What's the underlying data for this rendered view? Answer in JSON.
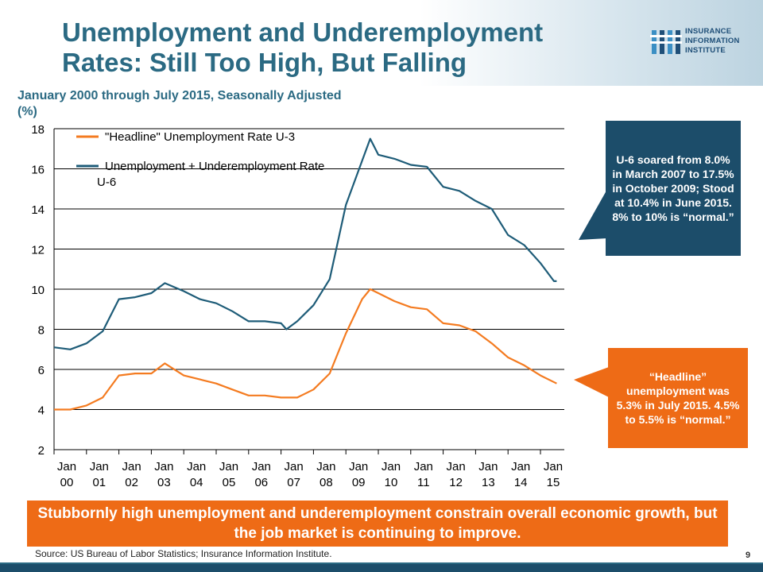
{
  "slide": {
    "title": "Unemployment and Underemployment Rates: Still Too High, But Falling",
    "subtitle": "January 2000 through July 2015, Seasonally Adjusted (%)",
    "logo": {
      "line1": "INSURANCE",
      "line2": "INFORMATION",
      "line3": "INSTITUTE"
    },
    "callout_u6": "U-6 soared from 8.0% in March 2007 to 17.5% in October 2009; Stood at 10.4% in June 2015. 8% to 10% is “normal.”",
    "callout_u3": "“Headline” unemployment was 5.3% in July 2015. 4.5% to 5.5% is “normal.”",
    "banner": "Stubbornly high unemployment and underemployment constrain overall economic growth, but the job market is continuing to improve.",
    "source": "Source: US Bureau of Labor Statistics; Insurance Information Institute.",
    "page_number": "9"
  },
  "colors": {
    "u3": "#f47b20",
    "u6": "#1e5c78",
    "title": "#2b6a83",
    "callout_u6_bg": "#1c4d6a",
    "callout_u3_bg": "#ee6b16"
  },
  "chart_data": {
    "type": "line",
    "title": "",
    "ylabel": "",
    "xlabel": "",
    "ylim": [
      2,
      18
    ],
    "yticks": [
      "2",
      "4",
      "6",
      "8",
      "10",
      "12",
      "14",
      "16",
      "18"
    ],
    "xlim": [
      "2000-01",
      "2015-07"
    ],
    "xtick_labels": [
      [
        "Jan",
        "00"
      ],
      [
        "Jan",
        "01"
      ],
      [
        "Jan",
        "02"
      ],
      [
        "Jan",
        "03"
      ],
      [
        "Jan",
        "04"
      ],
      [
        "Jan",
        "05"
      ],
      [
        "Jan",
        "06"
      ],
      [
        "Jan",
        "07"
      ],
      [
        "Jan",
        "08"
      ],
      [
        "Jan",
        "09"
      ],
      [
        "Jan",
        "10"
      ],
      [
        "Jan",
        "11"
      ],
      [
        "Jan",
        "12"
      ],
      [
        "Jan",
        "13"
      ],
      [
        "Jan",
        "14"
      ],
      [
        "Jan",
        "15"
      ]
    ],
    "grid": "horizontal",
    "legend_position": "top-left",
    "series": [
      {
        "name": "\"Headline\" Unemployment Rate U-3",
        "color": "#f47b20",
        "points": [
          [
            "2000-01",
            4.0
          ],
          [
            "2000-07",
            4.0
          ],
          [
            "2001-01",
            4.2
          ],
          [
            "2001-07",
            4.6
          ],
          [
            "2002-01",
            5.7
          ],
          [
            "2002-07",
            5.8
          ],
          [
            "2003-01",
            5.8
          ],
          [
            "2003-06",
            6.3
          ],
          [
            "2004-01",
            5.7
          ],
          [
            "2004-07",
            5.5
          ],
          [
            "2005-01",
            5.3
          ],
          [
            "2005-07",
            5.0
          ],
          [
            "2006-01",
            4.7
          ],
          [
            "2006-07",
            4.7
          ],
          [
            "2007-01",
            4.6
          ],
          [
            "2007-07",
            4.6
          ],
          [
            "2008-01",
            5.0
          ],
          [
            "2008-07",
            5.8
          ],
          [
            "2009-01",
            7.8
          ],
          [
            "2009-07",
            9.5
          ],
          [
            "2009-10",
            10.0
          ],
          [
            "2010-01",
            9.8
          ],
          [
            "2010-07",
            9.4
          ],
          [
            "2011-01",
            9.1
          ],
          [
            "2011-07",
            9.0
          ],
          [
            "2012-01",
            8.3
          ],
          [
            "2012-07",
            8.2
          ],
          [
            "2013-01",
            7.9
          ],
          [
            "2013-07",
            7.3
          ],
          [
            "2014-01",
            6.6
          ],
          [
            "2014-07",
            6.2
          ],
          [
            "2015-01",
            5.7
          ],
          [
            "2015-07",
            5.3
          ]
        ]
      },
      {
        "name": "Unemployment + Underemployment Rate U-6",
        "color": "#1e5c78",
        "points": [
          [
            "2000-01",
            7.1
          ],
          [
            "2000-07",
            7.0
          ],
          [
            "2001-01",
            7.3
          ],
          [
            "2001-07",
            7.9
          ],
          [
            "2002-01",
            9.5
          ],
          [
            "2002-07",
            9.6
          ],
          [
            "2003-01",
            9.8
          ],
          [
            "2003-06",
            10.3
          ],
          [
            "2004-01",
            9.9
          ],
          [
            "2004-07",
            9.5
          ],
          [
            "2005-01",
            9.3
          ],
          [
            "2005-07",
            8.9
          ],
          [
            "2006-01",
            8.4
          ],
          [
            "2006-07",
            8.4
          ],
          [
            "2007-01",
            8.3
          ],
          [
            "2007-03",
            8.0
          ],
          [
            "2007-07",
            8.4
          ],
          [
            "2008-01",
            9.2
          ],
          [
            "2008-07",
            10.5
          ],
          [
            "2009-01",
            14.2
          ],
          [
            "2009-07",
            16.4
          ],
          [
            "2009-10",
            17.5
          ],
          [
            "2010-01",
            16.7
          ],
          [
            "2010-07",
            16.5
          ],
          [
            "2011-01",
            16.2
          ],
          [
            "2011-07",
            16.1
          ],
          [
            "2012-01",
            15.1
          ],
          [
            "2012-07",
            14.9
          ],
          [
            "2013-01",
            14.4
          ],
          [
            "2013-07",
            14.0
          ],
          [
            "2014-01",
            12.7
          ],
          [
            "2014-07",
            12.2
          ],
          [
            "2015-01",
            11.3
          ],
          [
            "2015-06",
            10.4
          ],
          [
            "2015-07",
            10.4
          ]
        ]
      }
    ]
  }
}
